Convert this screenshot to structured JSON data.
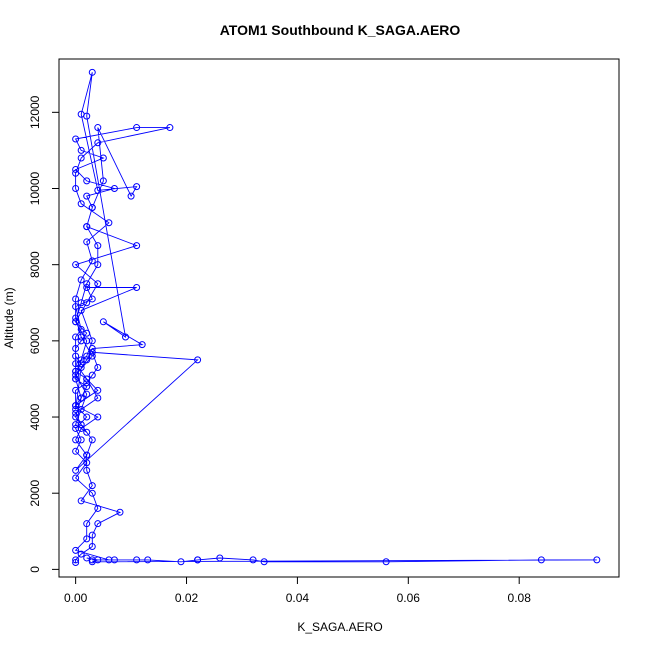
{
  "chart_data": {
    "type": "line",
    "title": "ATOM1 Southbound K_SAGA.AERO",
    "xlabel": "K_SAGA.AERO",
    "ylabel": "Altitude (m)",
    "xlim": [
      -0.003,
      0.098
    ],
    "ylim": [
      -200,
      13400
    ],
    "x_ticks": [
      0,
      0.02,
      0.04,
      0.06,
      0.08
    ],
    "x_tick_labels": [
      "0.00",
      "0.02",
      "0.04",
      "0.06",
      "0.08"
    ],
    "y_ticks": [
      0,
      2000,
      4000,
      6000,
      8000,
      10000,
      12000
    ],
    "y_tick_labels": [
      "0",
      "2000",
      "4000",
      "6000",
      "8000",
      "10000",
      "12000"
    ],
    "grid": false,
    "legend": "none",
    "series_color": "#0000ff",
    "series": [
      {
        "x": [
          0.0,
          0.0,
          0.001,
          0.003,
          0.003,
          0.004,
          0.008,
          0.001,
          0.003,
          0.002,
          0.002,
          0.0,
          0.001,
          0.004,
          0.0,
          0.001,
          0.002,
          0.0,
          0.0,
          0.001,
          0.0,
          0.0,
          0.001,
          0.002,
          0.0,
          0.002,
          0.004,
          0.0,
          0.011,
          0.002,
          0.003,
          0.002,
          0.007,
          0.002,
          0.0,
          0.005,
          0.001,
          0.0,
          0.011,
          0.017,
          0.004,
          0.001,
          0.0,
          0.0,
          0.001,
          0.006,
          0.002,
          0.003,
          0.001,
          0.0,
          0.0,
          0.001,
          0.003,
          0.0,
          0.002,
          0.001,
          0.0,
          0.002,
          0.0,
          0.001,
          0.0,
          0.001,
          0.002,
          0.0,
          0.001,
          0.002,
          0.004,
          0.004,
          0.002,
          0.003,
          0.005,
          0.004,
          0.01,
          0.011,
          0.004,
          0.001,
          0.003,
          0.002,
          0.009,
          0.005,
          0.012,
          0.003,
          0.002,
          0.001,
          0.0,
          0.0,
          0.002,
          0.003,
          0.004,
          0.003,
          0.022,
          0.0,
          0.002,
          0.003,
          0.001,
          0.0,
          0.004,
          0.002,
          0.0,
          0.0,
          0.001,
          0.0,
          0.003,
          0.002,
          0.011,
          0.001,
          0.003,
          0.002,
          0.0,
          0.002,
          0.004,
          0.0,
          0.002,
          0.0,
          0.001,
          0.0,
          0.002,
          0.0,
          0.003,
          0.004,
          0.002,
          0.002,
          0.0,
          0.006,
          0.003,
          0.007,
          0.011,
          0.013,
          0.019,
          0.022,
          0.022,
          0.026,
          0.032,
          0.034,
          0.056,
          0.084,
          0.094,
          0.003,
          0.004,
          0.002
        ],
        "y": [
          180,
          250,
          400,
          600,
          900,
          1200,
          1500,
          1800,
          2200,
          2600,
          3000,
          3400,
          3700,
          4000,
          4300,
          4500,
          4800,
          5000,
          5200,
          5400,
          5600,
          5800,
          6000,
          6200,
          6500,
          7000,
          7500,
          8000,
          8500,
          9000,
          9500,
          9800,
          10000,
          10200,
          10500,
          10800,
          11000,
          11300,
          11600,
          11600,
          11200,
          10800,
          10400,
          10000,
          9600,
          9100,
          8600,
          8100,
          7600,
          7100,
          6600,
          6100,
          5600,
          5100,
          4600,
          4200,
          3800,
          3600,
          4000,
          4500,
          5000,
          5500,
          6000,
          6500,
          7000,
          7500,
          8000,
          8500,
          9000,
          9500,
          10200,
          11600,
          9800,
          10050,
          9950,
          11950,
          13050,
          11900,
          6100,
          6500,
          5900,
          5800,
          5500,
          5300,
          4200,
          4700,
          4900,
          5100,
          5300,
          5700,
          5500,
          2600,
          3000,
          3400,
          3800,
          4100,
          4500,
          5000,
          5200,
          6100,
          6300,
          6900,
          7100,
          7400,
          7400,
          6800,
          6000,
          5600,
          5400,
          5000,
          4700,
          4300,
          4000,
          3700,
          3400,
          3100,
          2800,
          2400,
          2000,
          1600,
          1200,
          800,
          500,
          250,
          250,
          250,
          250,
          250,
          200,
          250,
          250,
          300,
          250,
          200,
          200,
          250,
          250,
          200,
          250,
          300
        ]
      }
    ]
  }
}
